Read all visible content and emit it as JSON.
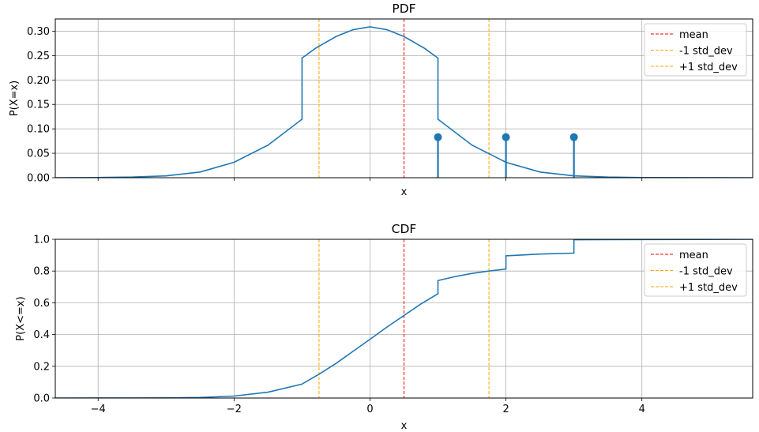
{
  "chart_data": [
    {
      "type": "line",
      "title": "PDF",
      "xlabel": "x",
      "ylabel": "P(X=x)",
      "xlim": [
        -4.63,
        5.63
      ],
      "ylim": [
        0,
        0.325
      ],
      "xticks": [
        -4,
        -2,
        0,
        2,
        4
      ],
      "xtick_labels_shown": false,
      "yticks": [
        0,
        0.05,
        0.1,
        0.15,
        0.2,
        0.25,
        0.3
      ],
      "ytick_labels": [
        "0.00",
        "0.05",
        "0.10",
        "0.15",
        "0.20",
        "0.25",
        "0.30"
      ],
      "grid": true,
      "legend": "top-right",
      "series": [
        {
          "kind": "line",
          "color": "#1f77b4",
          "points": [
            [
              -4.63,
              0.0
            ],
            [
              -4.0,
              0.0004
            ],
            [
              -3.5,
              0.0013
            ],
            [
              -3.0,
              0.0038
            ],
            [
              -2.5,
              0.0116
            ],
            [
              -2.0,
              0.0316
            ],
            [
              -1.5,
              0.0667
            ],
            [
              -1.0,
              0.1197
            ],
            [
              -1.0,
              0.245
            ],
            [
              -0.8,
              0.265
            ],
            [
              -0.5,
              0.289
            ],
            [
              -0.25,
              0.303
            ],
            [
              0.0,
              0.309
            ],
            [
              0.25,
              0.303
            ],
            [
              0.5,
              0.289
            ],
            [
              0.8,
              0.265
            ],
            [
              1.0,
              0.245
            ],
            [
              1.0,
              0.1197
            ],
            [
              1.5,
              0.0667
            ],
            [
              2.0,
              0.0316
            ],
            [
              2.5,
              0.0116
            ],
            [
              3.0,
              0.0038
            ],
            [
              3.5,
              0.0013
            ],
            [
              4.0,
              0.0004
            ],
            [
              5.63,
              0.0
            ]
          ]
        },
        {
          "kind": "stem",
          "color": "#1f77b4",
          "x": [
            1,
            2,
            3
          ],
          "y": [
            0.083,
            0.083,
            0.083
          ]
        }
      ],
      "vlines": [
        {
          "name": "mean",
          "x": 0.5,
          "color": "#ff0000"
        },
        {
          "name": "-1 std_dev",
          "x": -0.75,
          "color": "#ffa500"
        },
        {
          "name": "+1 std_dev",
          "x": 1.75,
          "color": "#ffa500"
        }
      ],
      "legend_entries": [
        "mean",
        "-1 std_dev",
        "+1 std_dev"
      ]
    },
    {
      "type": "line",
      "title": "CDF",
      "xlabel": "x",
      "ylabel": "P(X<=x)",
      "xlim": [
        -4.63,
        5.63
      ],
      "ylim": [
        0,
        1.0
      ],
      "xticks": [
        -4,
        -2,
        0,
        2,
        4
      ],
      "xtick_labels": [
        "−4",
        "−2",
        "0",
        "2",
        "4"
      ],
      "yticks": [
        0,
        0.2,
        0.4,
        0.6,
        0.8,
        1.0
      ],
      "ytick_labels": [
        "0.0",
        "0.2",
        "0.4",
        "0.6",
        "0.8",
        "1.0"
      ],
      "grid": true,
      "legend": "top-right",
      "series": [
        {
          "kind": "line",
          "color": "#1f77b4",
          "points": [
            [
              -4.63,
              0.0
            ],
            [
              -4.0,
              0.0001
            ],
            [
              -3.5,
              0.0003
            ],
            [
              -3.0,
              0.0011
            ],
            [
              -2.5,
              0.0035
            ],
            [
              -2.0,
              0.0125
            ],
            [
              -1.5,
              0.037
            ],
            [
              -1.0,
              0.088
            ],
            [
              -0.75,
              0.15
            ],
            [
              -0.5,
              0.218
            ],
            [
              -0.25,
              0.294
            ],
            [
              0.0,
              0.37
            ],
            [
              0.25,
              0.447
            ],
            [
              0.5,
              0.52
            ],
            [
              0.75,
              0.593
            ],
            [
              1.0,
              0.657
            ],
            [
              1.0,
              0.74
            ],
            [
              1.25,
              0.765
            ],
            [
              1.5,
              0.785
            ],
            [
              1.75,
              0.8
            ],
            [
              2.0,
              0.813
            ],
            [
              2.0,
              0.896
            ],
            [
              2.5,
              0.907
            ],
            [
              3.0,
              0.913
            ],
            [
              3.0,
              0.997
            ],
            [
              5.63,
              1.0
            ]
          ]
        }
      ],
      "vlines": [
        {
          "name": "mean",
          "x": 0.5,
          "color": "#ff0000"
        },
        {
          "name": "-1 std_dev",
          "x": -0.75,
          "color": "#ffa500"
        },
        {
          "name": "+1 std_dev",
          "x": 1.75,
          "color": "#ffa500"
        }
      ],
      "legend_entries": [
        "mean",
        "-1 std_dev",
        "+1 std_dev"
      ]
    }
  ]
}
